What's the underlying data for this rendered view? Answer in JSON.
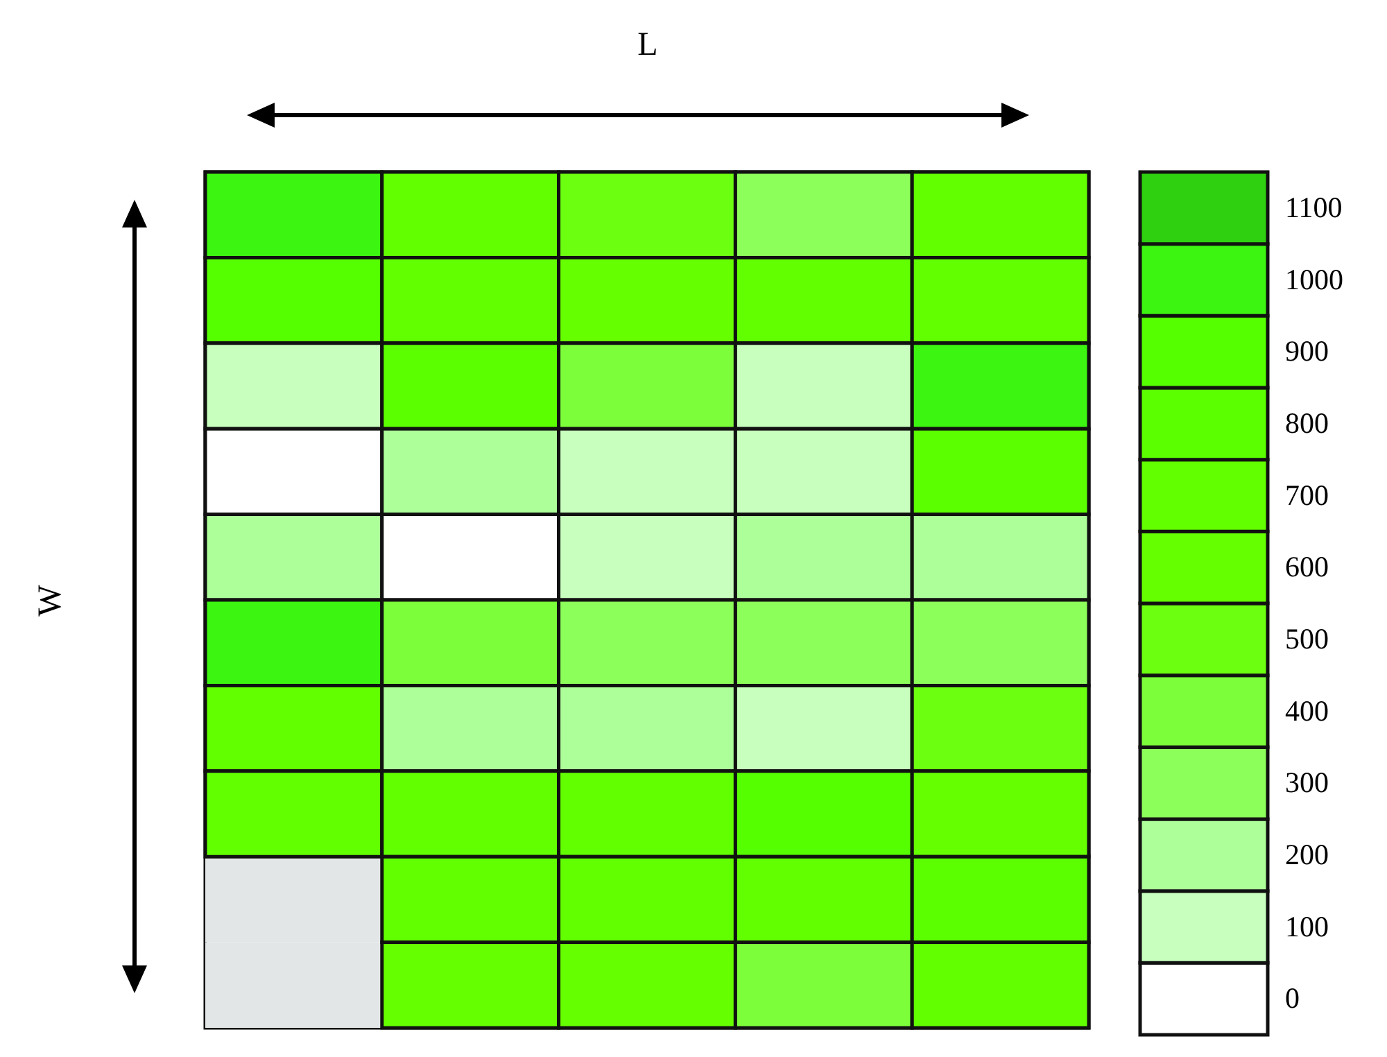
{
  "chart_data": {
    "type": "heatmap",
    "xlabel": "L",
    "ylabel": "W",
    "categories": [
      null,
      null,
      null,
      null,
      null
    ],
    "y_categories": [
      null,
      null,
      null,
      null,
      null,
      null,
      null,
      null,
      null,
      null
    ],
    "cells": [
      [
        1000,
        700,
        500,
        300,
        700
      ],
      [
        900,
        700,
        600,
        700,
        700
      ],
      [
        100,
        800,
        400,
        100,
        1000
      ],
      [
        0,
        200,
        100,
        100,
        800
      ],
      [
        200,
        0,
        100,
        200,
        200
      ],
      [
        1000,
        400,
        300,
        300,
        300
      ],
      [
        700,
        200,
        200,
        100,
        500
      ],
      [
        700,
        700,
        700,
        900,
        600
      ],
      [
        null,
        700,
        700,
        700,
        800
      ],
      [
        null,
        600,
        600,
        400,
        700
      ]
    ],
    "clim": [
      0,
      1100
    ],
    "cticks": [
      0,
      100,
      200,
      300,
      400,
      500,
      600,
      700,
      800,
      900,
      1000,
      1100
    ]
  }
}
